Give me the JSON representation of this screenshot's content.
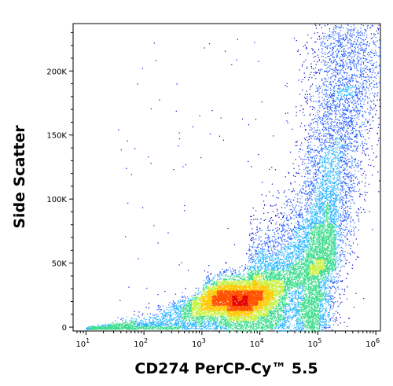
{
  "chart_data": {
    "type": "scatter",
    "subtype": "flow-cytometry-density-dot-plot",
    "title": "",
    "xlabel": "CD274 PerCP-Cy™ 5.5",
    "ylabel": "Side Scatter",
    "x_scale": "log",
    "xlim": [
      6,
      1200000
    ],
    "ylim": [
      -3000,
      237000
    ],
    "x_ticks": [
      {
        "value": 10,
        "label_base": "10",
        "label_exp": "1"
      },
      {
        "value": 100,
        "label_base": "10",
        "label_exp": "2"
      },
      {
        "value": 1000,
        "label_base": "10",
        "label_exp": "3"
      },
      {
        "value": 10000,
        "label_base": "10",
        "label_exp": "4"
      },
      {
        "value": 100000,
        "label_base": "10",
        "label_exp": "5"
      },
      {
        "value": 1000000,
        "label_base": "10",
        "label_exp": "6"
      }
    ],
    "y_ticks": [
      {
        "value": 0,
        "label": "0"
      },
      {
        "value": 50000,
        "label": "50K"
      },
      {
        "value": 100000,
        "label": "100K"
      },
      {
        "value": 150000,
        "label": "150K"
      },
      {
        "value": 200000,
        "label": "200K"
      }
    ],
    "density_colormap": [
      "#0000c8",
      "#1e5aff",
      "#28b4ff",
      "#3cdc8c",
      "#c8f03c",
      "#ffc800",
      "#ff5000",
      "#e60000"
    ],
    "populations": [
      {
        "name": "main",
        "center_x_log10": 3.6,
        "center_y": 22000,
        "spread_x_log10": 0.45,
        "spread_y": 9000
      },
      {
        "name": "tail",
        "center_x_log10": 5.1,
        "center_y": 60000,
        "spread_x_log10": 0.25,
        "spread_y": 60000
      }
    ],
    "grid": false,
    "legend": "none"
  }
}
